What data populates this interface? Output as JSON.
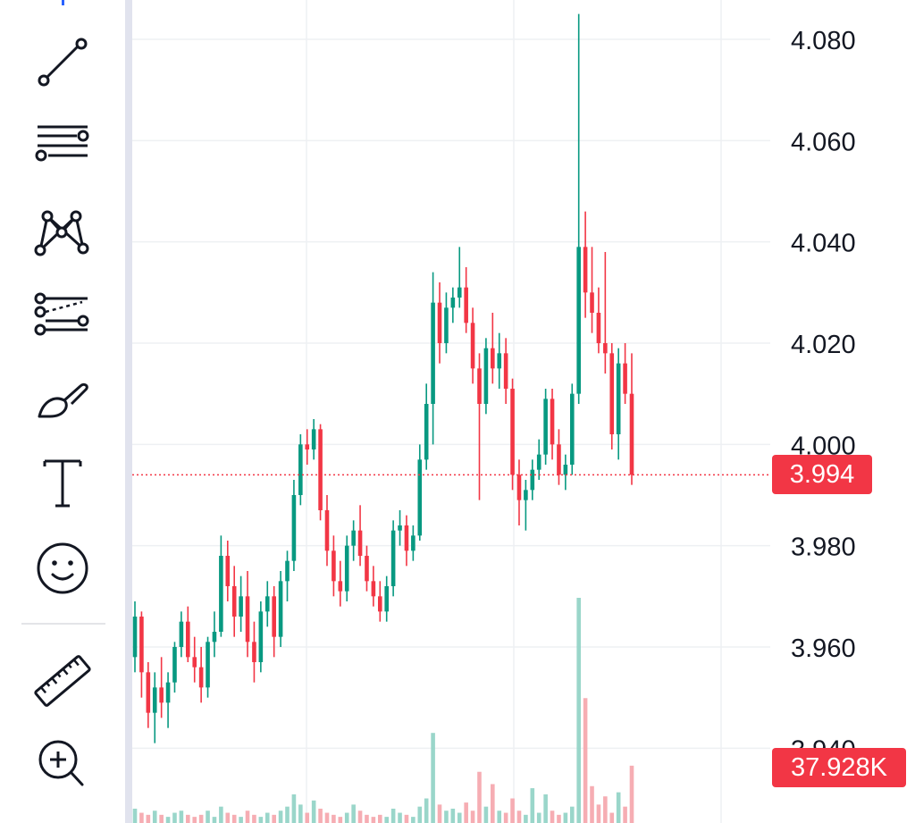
{
  "toolbar": {
    "tools": [
      {
        "name": "trend-line-icon"
      },
      {
        "name": "horizontal-lines-icon"
      },
      {
        "name": "pattern-icon"
      },
      {
        "name": "projection-icon"
      },
      {
        "name": "brush-icon"
      },
      {
        "name": "text-icon",
        "label": "T"
      },
      {
        "name": "emoji-icon"
      },
      {
        "name": "ruler-icon"
      },
      {
        "name": "zoom-in-icon"
      }
    ],
    "accent_color": "#2962ff"
  },
  "chart_data": {
    "type": "candlestick",
    "y_axis": {
      "ticks": [
        "4.080",
        "4.060",
        "4.040",
        "4.020",
        "4.000",
        "3.980",
        "3.960",
        "3.940"
      ],
      "range": [
        3.938,
        4.087
      ],
      "position": "right"
    },
    "grid": true,
    "last_price": {
      "value": 3.994,
      "label": "3.994",
      "color": "#f23645"
    },
    "last_volume": {
      "value": 37928,
      "label": "37.928K",
      "color": "#f23645"
    },
    "colors": {
      "up": "#089981",
      "down": "#f23645"
    },
    "candles": [
      [
        3.958,
        3.969,
        3.955,
        3.966
      ],
      [
        3.966,
        3.967,
        3.95,
        3.955
      ],
      [
        3.955,
        3.957,
        3.944,
        3.947
      ],
      [
        3.947,
        3.955,
        3.941,
        3.952
      ],
      [
        3.952,
        3.958,
        3.946,
        3.949
      ],
      [
        3.949,
        3.955,
        3.944,
        3.953
      ],
      [
        3.953,
        3.961,
        3.951,
        3.96
      ],
      [
        3.96,
        3.967,
        3.958,
        3.965
      ],
      [
        3.965,
        3.968,
        3.957,
        3.958
      ],
      [
        3.958,
        3.962,
        3.953,
        3.956
      ],
      [
        3.956,
        3.96,
        3.949,
        3.952
      ],
      [
        3.952,
        3.962,
        3.95,
        3.961
      ],
      [
        3.961,
        3.967,
        3.958,
        3.963
      ],
      [
        3.963,
        3.982,
        3.962,
        3.978
      ],
      [
        3.978,
        3.981,
        3.969,
        3.972
      ],
      [
        3.972,
        3.976,
        3.962,
        3.966
      ],
      [
        3.966,
        3.974,
        3.963,
        3.97
      ],
      [
        3.97,
        3.975,
        3.958,
        3.961
      ],
      [
        3.961,
        3.965,
        3.953,
        3.957
      ],
      [
        3.957,
        3.969,
        3.955,
        3.967
      ],
      [
        3.967,
        3.973,
        3.964,
        3.97
      ],
      [
        3.97,
        3.972,
        3.958,
        3.962
      ],
      [
        3.962,
        3.975,
        3.96,
        3.973
      ],
      [
        3.973,
        3.979,
        3.969,
        3.977
      ],
      [
        3.977,
        3.993,
        3.975,
        3.99
      ],
      [
        3.99,
        4.002,
        3.988,
        4.0
      ],
      [
        4.0,
        4.003,
        3.996,
        3.999
      ],
      [
        3.999,
        4.005,
        3.997,
        4.003
      ],
      [
        4.003,
        4.004,
        3.985,
        3.987
      ],
      [
        3.987,
        3.99,
        3.976,
        3.979
      ],
      [
        3.979,
        3.982,
        3.97,
        3.973
      ],
      [
        3.973,
        3.977,
        3.968,
        3.971
      ],
      [
        3.971,
        3.982,
        3.969,
        3.98
      ],
      [
        3.98,
        3.985,
        3.977,
        3.983
      ],
      [
        3.983,
        3.988,
        3.976,
        3.978
      ],
      [
        3.978,
        3.98,
        3.971,
        3.973
      ],
      [
        3.973,
        3.976,
        3.968,
        3.97
      ],
      [
        3.97,
        3.973,
        3.965,
        3.967
      ],
      [
        3.967,
        3.974,
        3.965,
        3.972
      ],
      [
        3.972,
        3.985,
        3.97,
        3.983
      ],
      [
        3.983,
        3.987,
        3.98,
        3.984
      ],
      [
        3.984,
        3.986,
        3.976,
        3.979
      ],
      [
        3.979,
        3.984,
        3.977,
        3.982
      ],
      [
        3.982,
        4.0,
        3.981,
        3.997
      ],
      [
        3.997,
        4.012,
        3.995,
        4.008
      ],
      [
        4.008,
        4.034,
        4.0,
        4.028
      ],
      [
        4.028,
        4.032,
        4.016,
        4.02
      ],
      [
        4.02,
        4.03,
        4.018,
        4.027
      ],
      [
        4.027,
        4.031,
        4.024,
        4.029
      ],
      [
        4.029,
        4.039,
        4.027,
        4.031
      ],
      [
        4.031,
        4.035,
        4.022,
        4.024
      ],
      [
        4.024,
        4.027,
        4.012,
        4.015
      ],
      [
        4.015,
        4.018,
        3.989,
        4.008
      ],
      [
        4.008,
        4.021,
        4.006,
        4.019
      ],
      [
        4.019,
        4.026,
        4.012,
        4.015
      ],
      [
        4.015,
        4.022,
        4.011,
        4.018
      ],
      [
        4.018,
        4.021,
        4.008,
        4.011
      ],
      [
        4.011,
        4.013,
        3.991,
        3.994
      ],
      [
        3.994,
        3.997,
        3.984,
        3.989
      ],
      [
        3.989,
        3.993,
        3.983,
        3.991
      ],
      [
        3.991,
        3.997,
        3.989,
        3.995
      ],
      [
        3.995,
        4.001,
        3.993,
        3.998
      ],
      [
        3.998,
        4.011,
        3.996,
        4.009
      ],
      [
        4.009,
        4.011,
        3.997,
        4.0
      ],
      [
        4.0,
        4.003,
        3.992,
        3.994
      ],
      [
        3.994,
        3.998,
        3.991,
        3.996
      ],
      [
        3.996,
        4.012,
        3.994,
        4.01
      ],
      [
        4.01,
        4.085,
        4.008,
        4.039
      ],
      [
        4.039,
        4.046,
        4.025,
        4.03
      ],
      [
        4.03,
        4.039,
        4.022,
        4.026
      ],
      [
        4.026,
        4.031,
        4.018,
        4.02
      ],
      [
        4.02,
        4.038,
        4.014,
        4.018
      ],
      [
        4.018,
        4.02,
        3.999,
        4.002
      ],
      [
        4.002,
        4.019,
        3.997,
        4.016
      ],
      [
        4.016,
        4.02,
        4.008,
        4.01
      ],
      [
        4.01,
        4.018,
        3.992,
        3.994
      ]
    ],
    "volumes": [
      7,
      5,
      4,
      6,
      4,
      3,
      5,
      6,
      4,
      3,
      4,
      6,
      3,
      8,
      5,
      4,
      3,
      6,
      4,
      3,
      5,
      4,
      6,
      8,
      14,
      9,
      5,
      11,
      7,
      5,
      4,
      3,
      5,
      9,
      6,
      4,
      3,
      4,
      3,
      7,
      5,
      4,
      3,
      8,
      12,
      44,
      9,
      6,
      7,
      5,
      10,
      6,
      25,
      8,
      19,
      6,
      5,
      12,
      6,
      4,
      17,
      5,
      14,
      6,
      4,
      5,
      8,
      110,
      61,
      18,
      9,
      13,
      5,
      15,
      8,
      28
    ]
  }
}
